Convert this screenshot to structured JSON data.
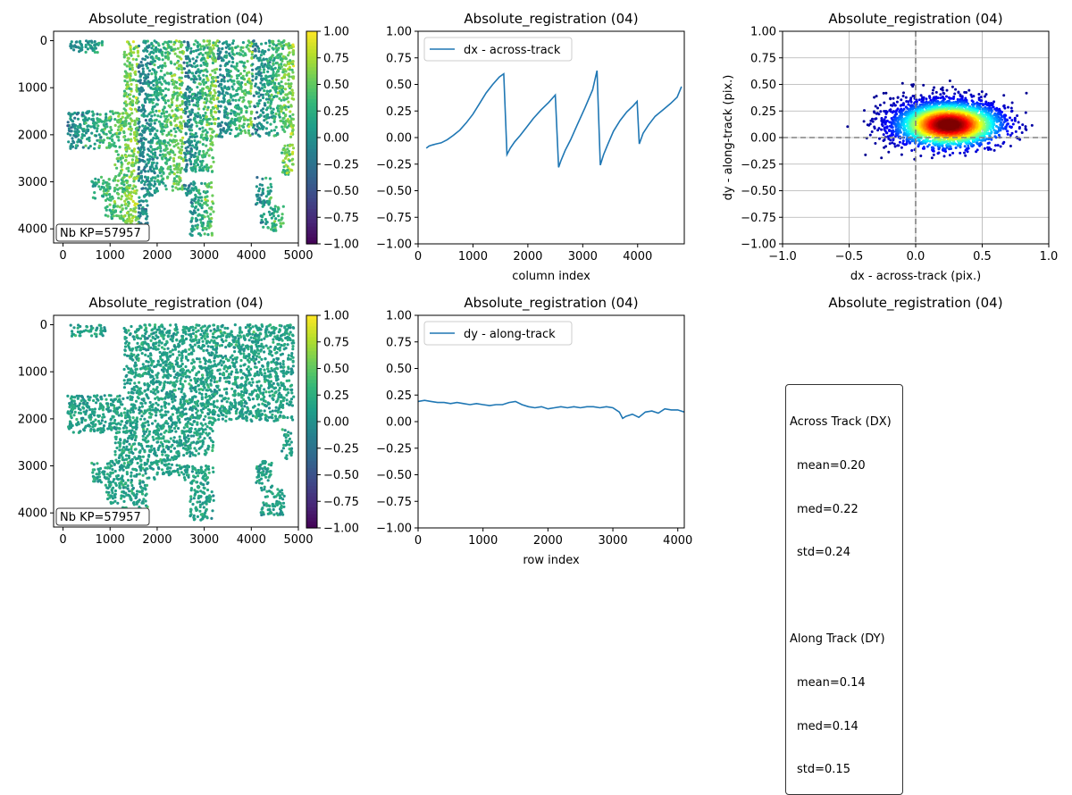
{
  "colors": {
    "viridis_low": "#440154",
    "viridis_mid": "#21918c",
    "viridis_high": "#fde725",
    "line": "#1f77b4",
    "grid": "#b0b0b0",
    "dashed": "#808080"
  },
  "stats": {
    "across_title": "Across Track (DX)",
    "across_mean": "mean=0.20",
    "across_med": "med=0.22",
    "across_std": "std=0.24",
    "along_title": "Along Track (DY)",
    "along_mean": "mean=0.14",
    "along_med": "med=0.14",
    "along_std": "std=0.15"
  },
  "chart_data": [
    {
      "id": "map_dx",
      "type": "heatmap",
      "title": "Absolute_registration (04)",
      "annotation": "Nb KP=57957",
      "xlim": [
        -200,
        5000
      ],
      "ylim": [
        4300,
        -200
      ],
      "xticks": [
        0,
        1000,
        2000,
        3000,
        4000,
        5000
      ],
      "yticks": [
        0,
        1000,
        2000,
        3000,
        4000
      ],
      "colorbar": {
        "min": -1.0,
        "max": 1.0,
        "ticks": [
          "1.00",
          "0.75",
          "0.50",
          "0.25",
          "0.00",
          "−0.25",
          "−0.50",
          "−0.75",
          "−1.00"
        ],
        "tick_values": [
          1,
          0.75,
          0.5,
          0.25,
          0,
          -0.25,
          -0.5,
          -0.75,
          -1
        ]
      }
    },
    {
      "id": "profile_dx",
      "type": "line",
      "title": "Absolute_registration (04)",
      "xlabel": "column index",
      "ylabel": "",
      "xlim": [
        0,
        4850
      ],
      "ylim": [
        -1.0,
        1.0
      ],
      "xticks": [
        0,
        1000,
        2000,
        3000,
        4000
      ],
      "yticks": [
        "1.00",
        "0.75",
        "0.50",
        "0.25",
        "0.00",
        "−0.25",
        "−0.50",
        "−0.75",
        "−1.00"
      ],
      "ytick_values": [
        1,
        0.75,
        0.5,
        0.25,
        0,
        -0.25,
        -0.5,
        -0.75,
        -1
      ],
      "legend": "top-left",
      "series": [
        {
          "name": "dx - across-track",
          "x": [
            150,
            200,
            260,
            330,
            420,
            530,
            640,
            760,
            880,
            1000,
            1120,
            1240,
            1360,
            1480,
            1560,
            1620,
            1680,
            1760,
            1860,
            1980,
            2100,
            2240,
            2380,
            2500,
            2560,
            2600,
            2680,
            2780,
            2900,
            3040,
            3180,
            3260,
            3320,
            3380,
            3460,
            3560,
            3680,
            3800,
            3920,
            3990,
            4030,
            4100,
            4200,
            4320,
            4460,
            4600,
            4720,
            4800
          ],
          "y": [
            -0.1,
            -0.08,
            -0.07,
            -0.06,
            -0.05,
            -0.02,
            0.02,
            0.07,
            0.14,
            0.22,
            0.32,
            0.42,
            0.5,
            0.57,
            0.6,
            -0.16,
            -0.1,
            -0.04,
            0.02,
            0.1,
            0.18,
            0.26,
            0.33,
            0.4,
            -0.28,
            -0.22,
            -0.12,
            -0.02,
            0.12,
            0.28,
            0.45,
            0.63,
            -0.26,
            -0.16,
            -0.06,
            0.06,
            0.16,
            0.24,
            0.3,
            0.34,
            -0.06,
            0.04,
            0.12,
            0.2,
            0.26,
            0.32,
            0.38,
            0.48
          ]
        }
      ]
    },
    {
      "id": "scatter_dxdy",
      "type": "scatter",
      "title": "Absolute_registration (04)",
      "xlabel": "dx - across-track (pix.)",
      "ylabel": "dy - along-track (pix.)",
      "xlim": [
        -1.0,
        1.0
      ],
      "ylim": [
        -1.0,
        1.0
      ],
      "xticks": [
        "−1.0",
        "−0.5",
        "0.0",
        "0.5",
        "1.0"
      ],
      "xtick_values": [
        -1,
        -0.5,
        0,
        0.5,
        1
      ],
      "yticks": [
        "1.00",
        "0.75",
        "0.50",
        "0.25",
        "0.00",
        "−0.25",
        "−0.50",
        "−0.75",
        "−1.00"
      ],
      "ytick_values": [
        1,
        0.75,
        0.5,
        0.25,
        0,
        -0.25,
        -0.5,
        -0.75,
        -1
      ],
      "grid": true,
      "density_center": {
        "dx": 0.22,
        "dy": 0.14
      },
      "density_spread": {
        "dx": 0.24,
        "dy": 0.15
      }
    },
    {
      "id": "map_dy",
      "type": "heatmap",
      "title": "Absolute_registration (04)",
      "annotation": "Nb KP=57957",
      "xlim": [
        -200,
        5000
      ],
      "ylim": [
        4300,
        -200
      ],
      "xticks": [
        0,
        1000,
        2000,
        3000,
        4000,
        5000
      ],
      "yticks": [
        0,
        1000,
        2000,
        3000,
        4000
      ],
      "colorbar": {
        "min": -1.0,
        "max": 1.0,
        "ticks": [
          "1.00",
          "0.75",
          "0.50",
          "0.25",
          "0.00",
          "−0.25",
          "−0.50",
          "−0.75",
          "−1.00"
        ],
        "tick_values": [
          1,
          0.75,
          0.5,
          0.25,
          0,
          -0.25,
          -0.5,
          -0.75,
          -1
        ]
      }
    },
    {
      "id": "profile_dy",
      "type": "line",
      "title": "Absolute_registration (04)",
      "xlabel": "row index",
      "ylabel": "",
      "xlim": [
        0,
        4100
      ],
      "ylim": [
        -1.0,
        1.0
      ],
      "xticks": [
        0,
        1000,
        2000,
        3000,
        4000
      ],
      "yticks": [
        "1.00",
        "0.75",
        "0.50",
        "0.25",
        "0.00",
        "−0.25",
        "−0.50",
        "−0.75",
        "−1.00"
      ],
      "ytick_values": [
        1,
        0.75,
        0.5,
        0.25,
        0,
        -0.25,
        -0.5,
        -0.75,
        -1
      ],
      "legend": "top-left",
      "series": [
        {
          "name": "dy - along-track",
          "x": [
            0,
            100,
            200,
            300,
            400,
            500,
            600,
            700,
            800,
            900,
            1000,
            1100,
            1200,
            1300,
            1400,
            1500,
            1600,
            1700,
            1800,
            1900,
            2000,
            2100,
            2200,
            2300,
            2400,
            2500,
            2600,
            2700,
            2800,
            2900,
            3000,
            3100,
            3150,
            3200,
            3300,
            3400,
            3500,
            3600,
            3700,
            3800,
            3900,
            4000,
            4100
          ],
          "y": [
            0.19,
            0.2,
            0.19,
            0.18,
            0.18,
            0.17,
            0.18,
            0.17,
            0.16,
            0.17,
            0.16,
            0.15,
            0.16,
            0.16,
            0.18,
            0.19,
            0.16,
            0.14,
            0.13,
            0.14,
            0.12,
            0.13,
            0.14,
            0.13,
            0.14,
            0.13,
            0.14,
            0.14,
            0.13,
            0.14,
            0.13,
            0.09,
            0.03,
            0.05,
            0.07,
            0.04,
            0.09,
            0.1,
            0.08,
            0.12,
            0.11,
            0.11,
            0.09
          ]
        }
      ]
    },
    {
      "id": "stats_panel",
      "type": "table",
      "title": "Absolute_registration (04)"
    }
  ]
}
